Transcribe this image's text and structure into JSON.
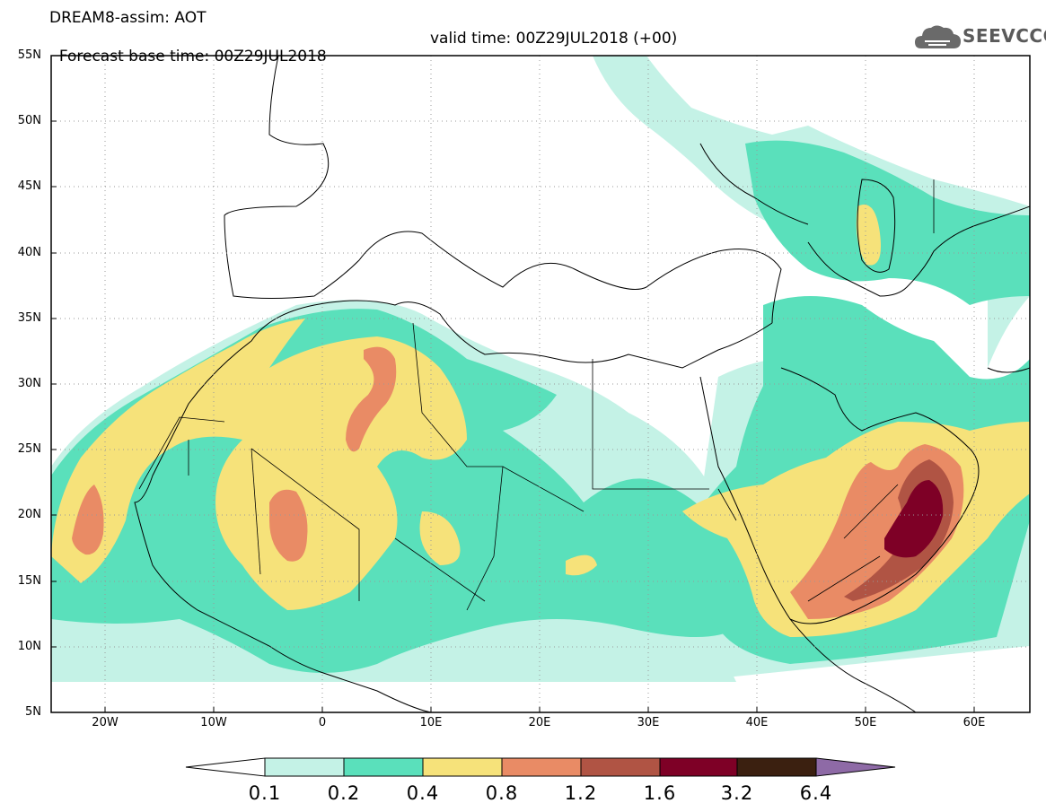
{
  "header": {
    "title": "DREAM8-assim: AOT",
    "forecast_base": "Forecast base time: 00Z29JUL2018",
    "valid_time": "valid time: 00Z29JUL2018 (+00)"
  },
  "logo": {
    "text": "SEEVCCC",
    "icon": "cloud-icon"
  },
  "map": {
    "lat_labels": [
      "55N",
      "50N",
      "45N",
      "40N",
      "35N",
      "30N",
      "25N",
      "20N",
      "15N",
      "10N",
      "5N"
    ],
    "lon_labels": [
      "20W",
      "10W",
      "0",
      "10E",
      "20E",
      "30E",
      "40E",
      "50E",
      "60E"
    ],
    "lon_range": [
      -25,
      65
    ],
    "lat_range": [
      5,
      55
    ],
    "grid": "dotted"
  },
  "colorbar": {
    "labels": [
      "0.1",
      "0.2",
      "0.4",
      "0.8",
      "1.2",
      "1.6",
      "3.2",
      "6.4"
    ],
    "colors": [
      "#ffffff",
      "#c4f2e6",
      "#5ae0bb",
      "#f6e27a",
      "#e98b65",
      "#b05444",
      "#7e0026",
      "#3b2010",
      "#8e6aa6"
    ]
  }
}
